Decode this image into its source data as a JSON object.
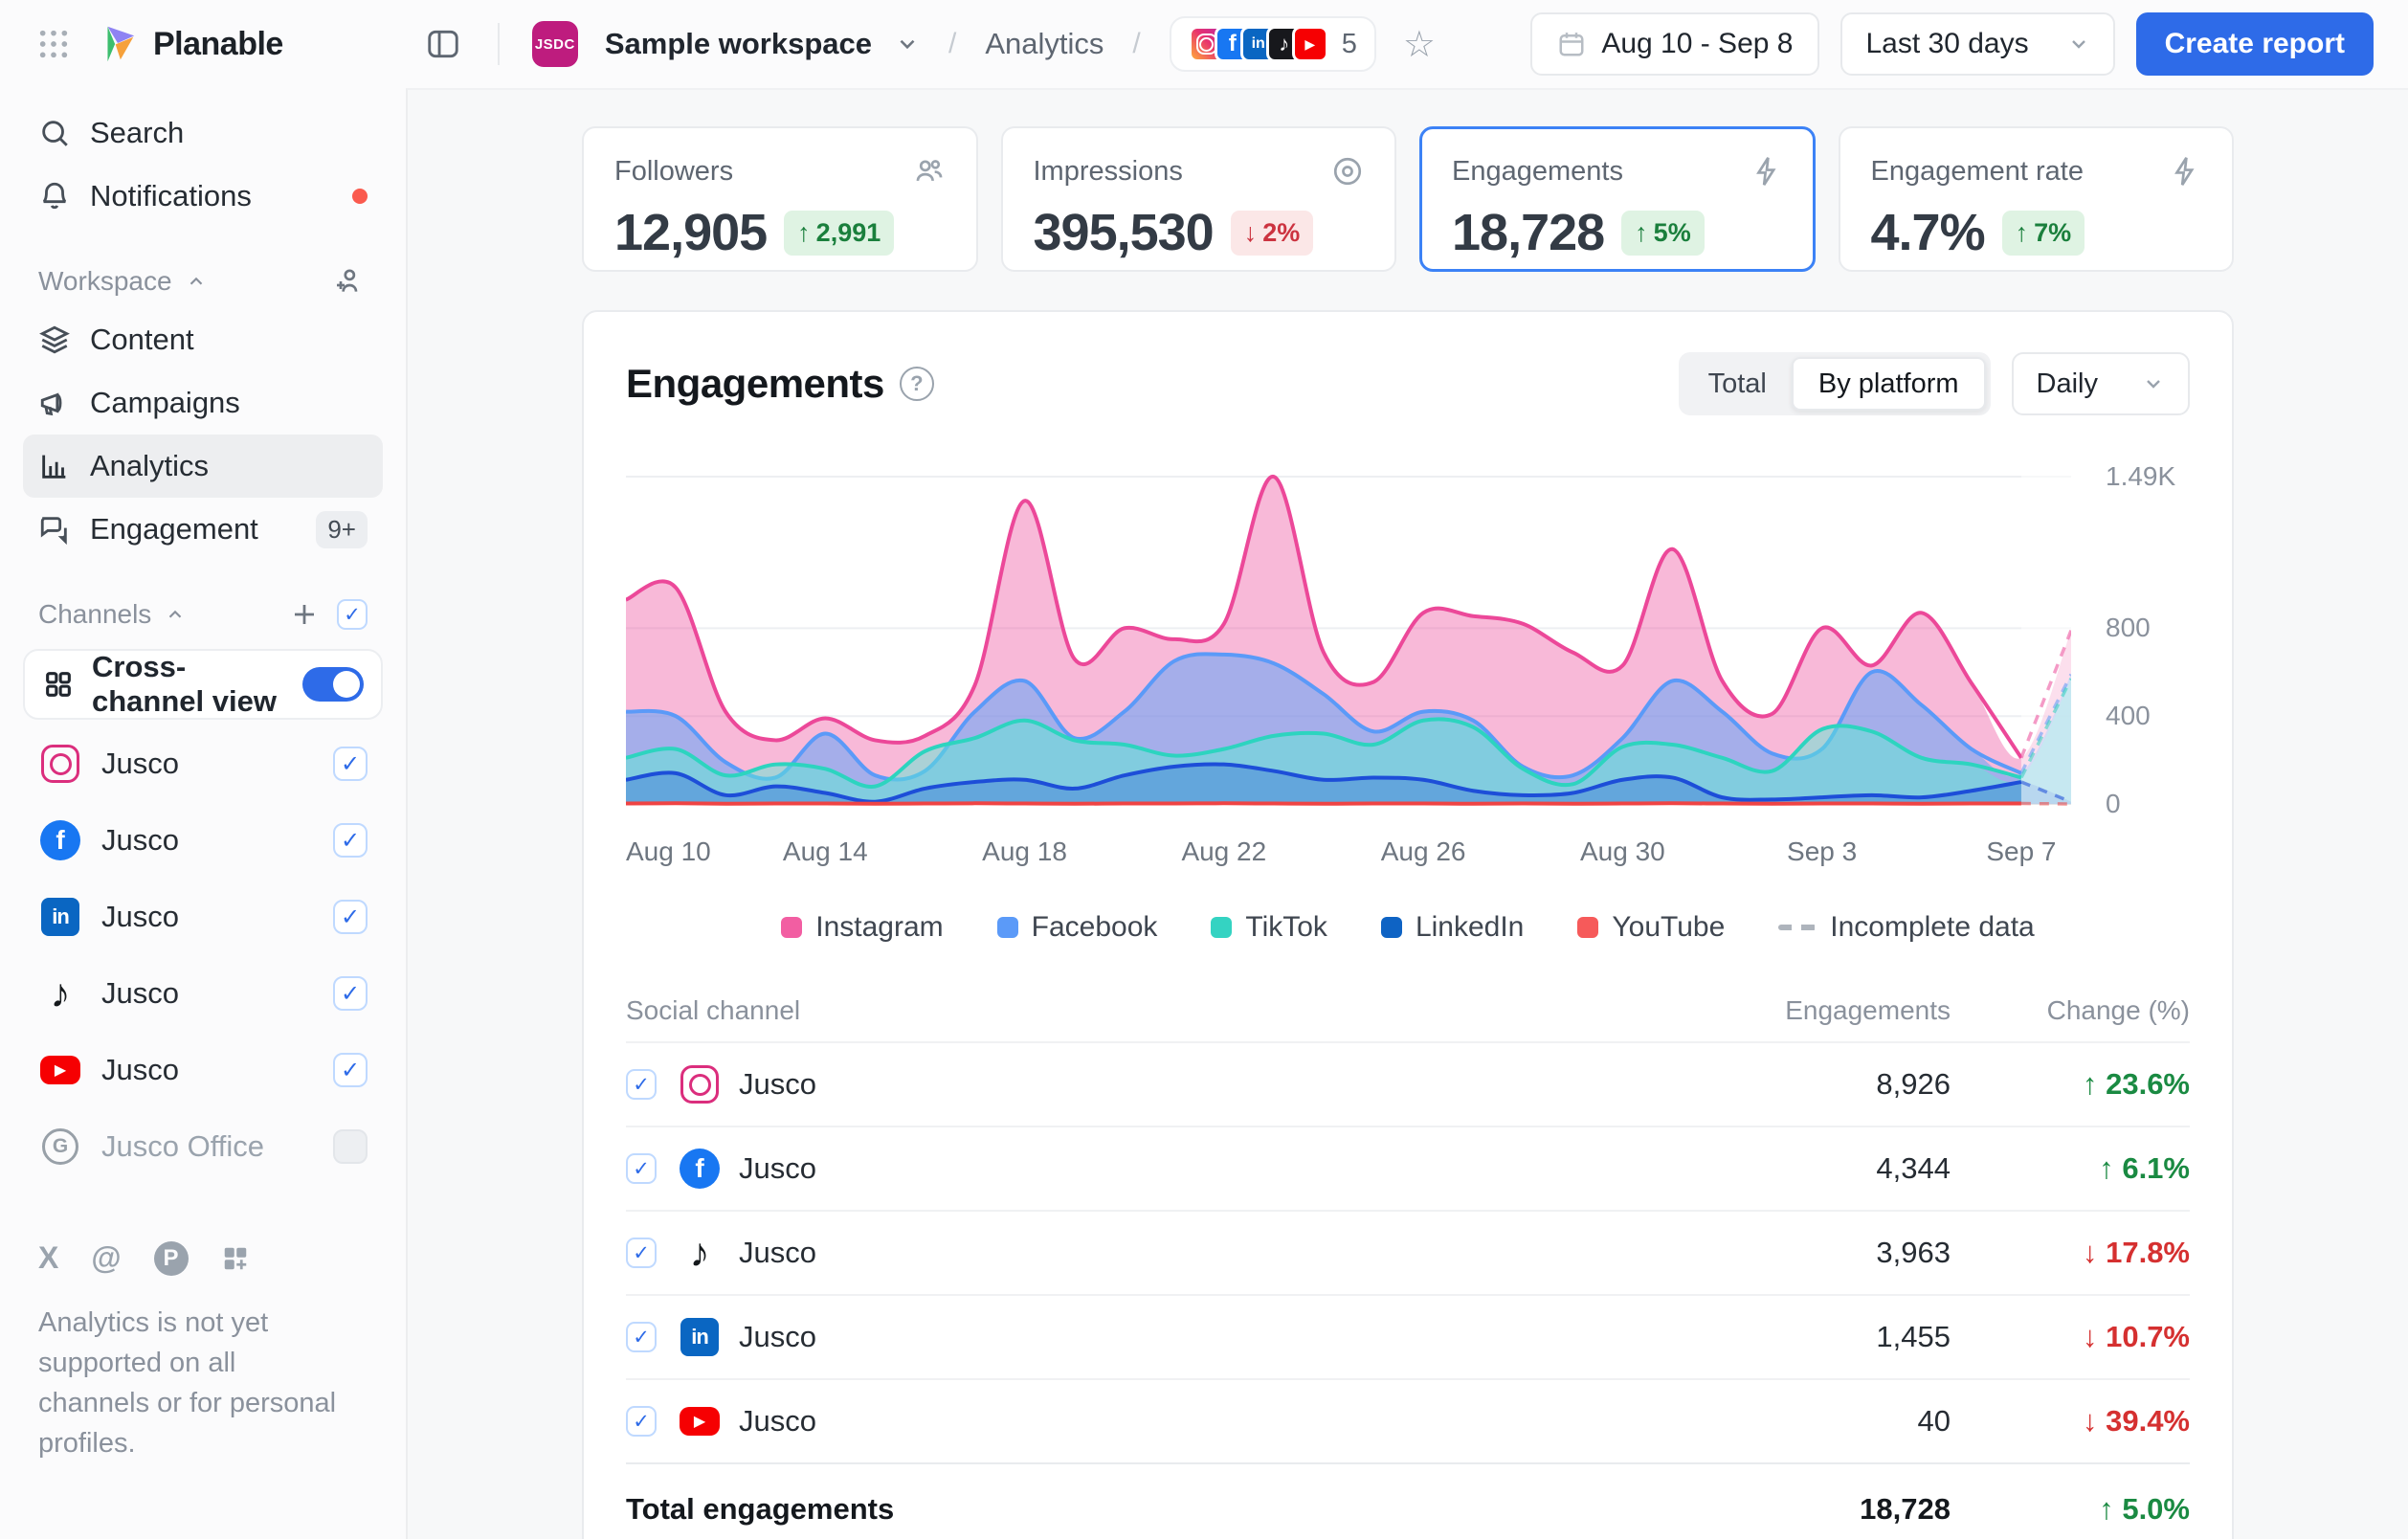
{
  "header": {
    "app_name": "Planable",
    "workspace_badge": "JSDC",
    "workspace_name": "Sample workspace",
    "page": "Analytics",
    "sep1": "/",
    "sep2": "/",
    "channel_count": "5",
    "date_range": "Aug 10  -  Sep 8",
    "period_selected": "Last 30 days",
    "create_report_label": "Create report"
  },
  "sidebar": {
    "search_label": "Search",
    "notifications_label": "Notifications",
    "workspace_section": "Workspace",
    "nav": [
      {
        "label": "Content"
      },
      {
        "label": "Campaigns"
      },
      {
        "label": "Analytics"
      },
      {
        "label": "Engagement",
        "badge": "9+"
      }
    ],
    "channels_section": "Channels",
    "cross_channel_label": "Cross-channel view",
    "channels": [
      {
        "name": "Jusco",
        "platform": "instagram",
        "icon_class": "picon picon-instagram",
        "name_class": "channel-name",
        "checkbox_class": "checkbox checked"
      },
      {
        "name": "Jusco",
        "platform": "facebook",
        "icon_class": "picon picon-facebook",
        "name_class": "channel-name",
        "checkbox_class": "checkbox checked"
      },
      {
        "name": "Jusco",
        "platform": "linkedin",
        "icon_class": "picon picon-linkedin",
        "name_class": "channel-name",
        "checkbox_class": "checkbox checked"
      },
      {
        "name": "Jusco",
        "platform": "tiktok",
        "icon_class": "picon picon-tiktok",
        "name_class": "channel-name",
        "checkbox_class": "checkbox checked"
      },
      {
        "name": "Jusco",
        "platform": "youtube",
        "icon_class": "picon picon-youtube",
        "name_class": "channel-name",
        "checkbox_class": "checkbox checked"
      },
      {
        "name": "Jusco Office",
        "platform": "google",
        "icon_class": "picon picon-google",
        "name_class": "channel-name muted",
        "checkbox_class": "checkbox unchecked"
      }
    ],
    "footer_note": "Analytics is not yet supported on all channels or for personal profiles."
  },
  "cards": [
    {
      "label": "Followers",
      "value": "12,905",
      "arrow": "↑",
      "change": "2,991",
      "badge_class": "badge up",
      "icon": "users-icon"
    },
    {
      "label": "Impressions",
      "value": "395,530",
      "arrow": "↓",
      "change": "2%",
      "badge_class": "badge down",
      "icon": "eye-icon"
    },
    {
      "label": "Engagements",
      "value": "18,728",
      "arrow": "↑",
      "change": "5%",
      "badge_class": "badge up",
      "icon": "bolt-icon",
      "selected": true
    },
    {
      "label": "Engagement rate",
      "value": "4.7%",
      "arrow": "↑",
      "change": "7%",
      "badge_class": "badge up",
      "icon": "bolt-icon"
    }
  ],
  "chart_section": {
    "title": "Engagements",
    "toggle_options": [
      {
        "label": "Total",
        "class": "seg-opt"
      },
      {
        "label": "By platform",
        "class": "seg-opt selected"
      }
    ],
    "granularity": "Daily"
  },
  "chart_data": {
    "type": "area",
    "stacked": false,
    "title": "Engagements",
    "x": [
      "Aug 10",
      "Aug 11",
      "Aug 12",
      "Aug 13",
      "Aug 14",
      "Aug 15",
      "Aug 16",
      "Aug 17",
      "Aug 18",
      "Aug 19",
      "Aug 20",
      "Aug 21",
      "Aug 22",
      "Aug 23",
      "Aug 24",
      "Aug 25",
      "Aug 26",
      "Aug 27",
      "Aug 28",
      "Aug 29",
      "Aug 30",
      "Aug 31",
      "Sep 1",
      "Sep 2",
      "Sep 3",
      "Sep 4",
      "Sep 5",
      "Sep 6",
      "Sep 7",
      "Sep 8"
    ],
    "x_axis_labels": [
      "Aug 10",
      "Aug 14",
      "Aug 18",
      "Aug 22",
      "Aug 26",
      "Aug 30",
      "Sep 3",
      "Sep 7"
    ],
    "x_label_step": 4,
    "ylim": [
      0,
      1490
    ],
    "y_ticks": [
      {
        "label": "1.49K",
        "value": 1490
      },
      {
        "label": "800",
        "value": 800
      },
      {
        "label": "400",
        "value": 400
      },
      {
        "label": "0",
        "value": 0
      }
    ],
    "grid": true,
    "legend_position": "bottom",
    "incomplete_from_index": 28,
    "incomplete_label": "Incomplete data",
    "series": [
      {
        "name": "Instagram",
        "color": "#EC4899",
        "fill": "rgba(236,72,153,0.38)",
        "swatch": "#F25EA2",
        "values": [
          930,
          985,
          420,
          290,
          390,
          290,
          310,
          540,
          1380,
          660,
          800,
          750,
          820,
          1490,
          690,
          555,
          870,
          855,
          820,
          690,
          630,
          1160,
          560,
          410,
          800,
          630,
          870,
          550,
          210,
          790
        ]
      },
      {
        "name": "Facebook",
        "color": "#5B9AF8",
        "fill": "rgba(96,165,250,0.55)",
        "swatch": "#5B9AF8",
        "values": [
          420,
          400,
          190,
          120,
          320,
          130,
          150,
          420,
          560,
          300,
          420,
          650,
          680,
          640,
          500,
          330,
          420,
          380,
          170,
          130,
          300,
          560,
          420,
          230,
          250,
          600,
          450,
          250,
          140,
          590
        ]
      },
      {
        "name": "TikTok",
        "color": "#2DD4BF",
        "fill": "rgba(94,234,212,0.5)",
        "swatch": "#34D3C2",
        "values": [
          210,
          250,
          130,
          180,
          160,
          80,
          240,
          300,
          380,
          290,
          270,
          220,
          250,
          310,
          320,
          270,
          380,
          350,
          160,
          90,
          260,
          270,
          210,
          150,
          340,
          330,
          210,
          180,
          120,
          570
        ]
      },
      {
        "name": "LinkedIn",
        "color": "#1D4ED8",
        "fill": "rgba(29,78,216,0.30)",
        "swatch": "#0E63C4",
        "values": [
          110,
          140,
          40,
          80,
          50,
          10,
          70,
          100,
          110,
          70,
          130,
          170,
          180,
          150,
          110,
          120,
          110,
          60,
          40,
          50,
          110,
          120,
          30,
          20,
          30,
          40,
          30,
          60,
          100,
          10
        ]
      },
      {
        "name": "YouTube",
        "color": "#EF4444",
        "fill": "rgba(239,68,68,0.25)",
        "swatch": "#F65A5A",
        "values": [
          2,
          3,
          1,
          2,
          2,
          1,
          2,
          3,
          2,
          1,
          2,
          2,
          3,
          2,
          1,
          2,
          2,
          1,
          2,
          1,
          2,
          3,
          2,
          1,
          2,
          2,
          1,
          2,
          2,
          0
        ]
      }
    ]
  },
  "table": {
    "col_channel": "Social channel",
    "col_engagements": "Engagements",
    "col_change": "Change (%)",
    "rows": [
      {
        "name": "Jusco",
        "icon_class": "picon picon-instagram",
        "engagements": "8,926",
        "arrow": "↑",
        "change": "23.6%",
        "change_class": "delta up"
      },
      {
        "name": "Jusco",
        "icon_class": "picon picon-facebook",
        "engagements": "4,344",
        "arrow": "↑",
        "change": "6.1%",
        "change_class": "delta up"
      },
      {
        "name": "Jusco",
        "icon_class": "picon picon-tiktok",
        "engagements": "3,963",
        "arrow": "↓",
        "change": "17.8%",
        "change_class": "delta down"
      },
      {
        "name": "Jusco",
        "icon_class": "picon picon-linkedin",
        "engagements": "1,455",
        "arrow": "↓",
        "change": "10.7%",
        "change_class": "delta down"
      },
      {
        "name": "Jusco",
        "icon_class": "picon picon-youtube",
        "engagements": "40",
        "arrow": "↓",
        "change": "39.4%",
        "change_class": "delta down"
      }
    ],
    "total": {
      "label": "Total engagements",
      "value": "18,728",
      "arrow": "↑",
      "change": "5.0%",
      "change_class": "delta up"
    }
  }
}
